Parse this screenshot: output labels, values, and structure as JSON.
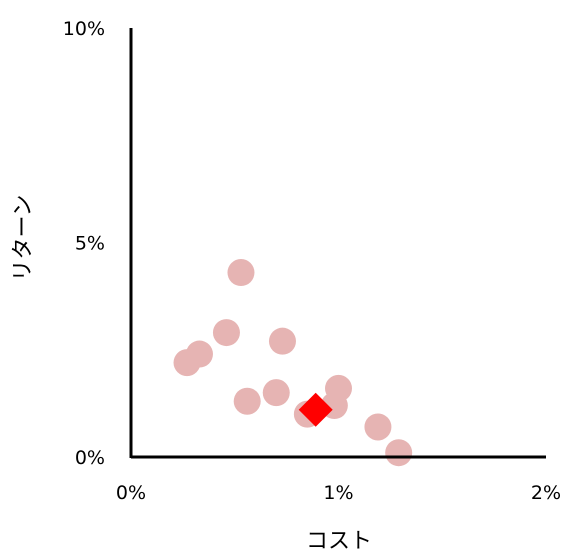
{
  "chart_data": {
    "type": "scatter",
    "title": "",
    "xlabel": "コスト",
    "ylabel": "リターン",
    "xlim": [
      0,
      2
    ],
    "ylim": [
      0,
      10
    ],
    "x_ticks": [
      {
        "value": 0,
        "label": "0%"
      },
      {
        "value": 1,
        "label": "1%"
      },
      {
        "value": 2,
        "label": "2%"
      }
    ],
    "y_ticks": [
      {
        "value": 0,
        "label": "0%"
      },
      {
        "value": 5,
        "label": "5%"
      },
      {
        "value": 10,
        "label": "10%"
      }
    ],
    "grid": false,
    "legend": "none",
    "series": [
      {
        "marker": "circle",
        "color": "#e6b4b3",
        "points": [
          {
            "x": 0.27,
            "y": 2.2
          },
          {
            "x": 0.33,
            "y": 2.4
          },
          {
            "x": 0.46,
            "y": 2.9
          },
          {
            "x": 0.53,
            "y": 4.3
          },
          {
            "x": 0.56,
            "y": 1.3
          },
          {
            "x": 0.7,
            "y": 1.5
          },
          {
            "x": 0.73,
            "y": 2.7
          },
          {
            "x": 0.85,
            "y": 1.0
          },
          {
            "x": 0.98,
            "y": 1.2
          },
          {
            "x": 1.0,
            "y": 1.6
          },
          {
            "x": 1.19,
            "y": 0.7
          },
          {
            "x": 1.29,
            "y": 0.1
          }
        ]
      },
      {
        "marker": "diamond",
        "color": "#ff0000",
        "points": [
          {
            "x": 0.89,
            "y": 1.1
          }
        ]
      }
    ]
  }
}
